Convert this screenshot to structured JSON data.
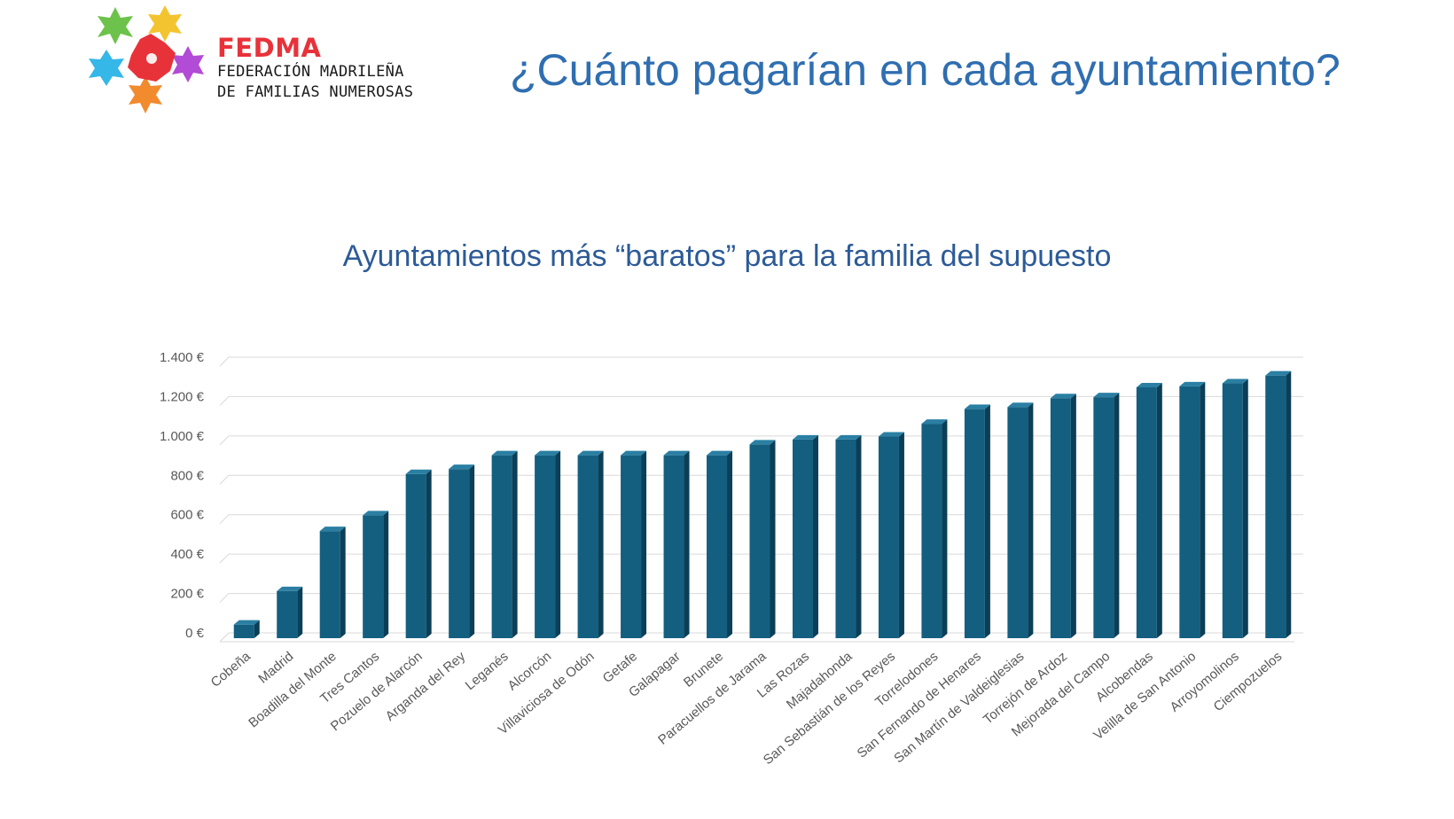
{
  "header": {
    "brand_name": "FEDMA",
    "brand_line1": "FEDERACIÓN MADRILEÑA",
    "brand_line2": "DE FAMILIAS NUMEROSAS",
    "page_title": "¿Cuánto pagarían en cada ayuntamiento?"
  },
  "colors": {
    "bar": "#145f80",
    "bar_side": "#0b3f57",
    "bar_top": "#2a7fa3",
    "brand_red": "#e8323a",
    "title_blue": "#2f6eb0"
  },
  "logo_icon": "fedma-stars-logo-icon",
  "chart_data": {
    "type": "bar",
    "title": "Ayuntamientos  más “baratos” para la familia del supuesto",
    "xlabel": "",
    "ylabel": "",
    "ylim": [
      0,
      1400
    ],
    "yticks": [
      0,
      200,
      400,
      600,
      800,
      1000,
      1200,
      1400
    ],
    "ytick_labels": [
      "0 €",
      "200 €",
      "400 €",
      "600 €",
      "800 €",
      "1.000 €",
      "1.200 €",
      "1.400 €"
    ],
    "grid": true,
    "legend": "none",
    "categories": [
      "Cobeña",
      "Madrid",
      "Boadilla del Monte",
      "Tres Cantos",
      "Pozuelo de Alarcón",
      "Arganda del Rey",
      "Leganés",
      "Alcorcón",
      "Villaviciosa de Odón",
      "Getafe",
      "Galapagar",
      "Brunete",
      "Paracuellos de Jarama",
      "Las Rozas",
      "Majadahonda",
      "San Sebastián de los Reyes",
      "Torrelodones",
      "San Fernando de Henares",
      "San Martín de Valdeiglesias",
      "Torrejón de Ardoz",
      "Mejorada del Campo",
      "Alcobendas",
      "Velilla de San Antonio",
      "Arroyomolinos",
      "Ciempozuelos"
    ],
    "values": [
      60,
      230,
      535,
      615,
      825,
      850,
      920,
      920,
      920,
      920,
      920,
      920,
      975,
      1000,
      1000,
      1015,
      1080,
      1155,
      1165,
      1210,
      1215,
      1265,
      1270,
      1285,
      1325
    ]
  }
}
